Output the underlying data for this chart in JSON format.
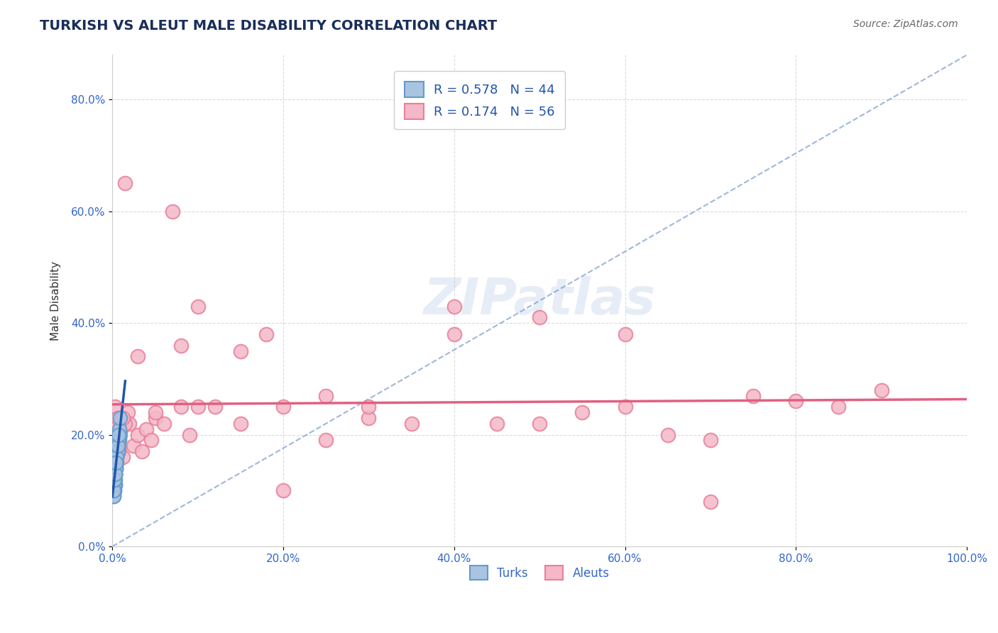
{
  "title": "TURKISH VS ALEUT MALE DISABILITY CORRELATION CHART",
  "source": "Source: ZipAtlas.com",
  "xlabel": "",
  "ylabel": "Male Disability",
  "xlim": [
    0.0,
    1.0
  ],
  "ylim": [
    0.0,
    0.88
  ],
  "xticks": [
    0.0,
    0.2,
    0.4,
    0.6,
    0.8,
    1.0
  ],
  "xticklabels": [
    "0.0%",
    "20.0%",
    "40.0%",
    "60.0%",
    "80.0%",
    "100.0%"
  ],
  "yticks": [
    0.0,
    0.2,
    0.4,
    0.6,
    0.8
  ],
  "yticklabels": [
    "0.0%",
    "20.0%",
    "40.0%",
    "60.0%",
    "80.0%"
  ],
  "turks_color": "#a8c4e0",
  "turks_edge_color": "#6699cc",
  "aleuts_color": "#f4b8c8",
  "aleuts_edge_color": "#e8809a",
  "turks_label": "Turks",
  "aleuts_label": "Aleuts",
  "turks_R": "0.578",
  "turks_N": "44",
  "aleuts_R": "0.174",
  "aleuts_N": "56",
  "turks_line_color": "#2255aa",
  "aleuts_line_color": "#e06080",
  "ref_line_color": "#7799cc",
  "title_color": "#1a2e5a",
  "tick_color": "#3366cc",
  "background_color": "#ffffff",
  "grid_color": "#cccccc",
  "watermark": "ZIPatlas",
  "turks_x": [
    0.001,
    0.002,
    0.001,
    0.003,
    0.002,
    0.001,
    0.004,
    0.002,
    0.003,
    0.001,
    0.005,
    0.003,
    0.002,
    0.001,
    0.004,
    0.003,
    0.002,
    0.001,
    0.006,
    0.003,
    0.007,
    0.004,
    0.002,
    0.005,
    0.008,
    0.003,
    0.006,
    0.004,
    0.002,
    0.001,
    0.009,
    0.005,
    0.003,
    0.007,
    0.004,
    0.006,
    0.002,
    0.003,
    0.005,
    0.004,
    0.008,
    0.006,
    0.007,
    0.009
  ],
  "turks_y": [
    0.12,
    0.1,
    0.14,
    0.11,
    0.13,
    0.09,
    0.15,
    0.1,
    0.12,
    0.11,
    0.16,
    0.13,
    0.12,
    0.1,
    0.14,
    0.11,
    0.15,
    0.09,
    0.17,
    0.13,
    0.18,
    0.14,
    0.12,
    0.16,
    0.19,
    0.13,
    0.17,
    0.15,
    0.11,
    0.1,
    0.2,
    0.15,
    0.13,
    0.19,
    0.14,
    0.17,
    0.12,
    0.13,
    0.16,
    0.15,
    0.21,
    0.18,
    0.2,
    0.23
  ],
  "aleuts_x": [
    0.001,
    0.002,
    0.003,
    0.004,
    0.005,
    0.006,
    0.007,
    0.008,
    0.01,
    0.012,
    0.015,
    0.018,
    0.02,
    0.025,
    0.03,
    0.035,
    0.04,
    0.045,
    0.05,
    0.06,
    0.07,
    0.08,
    0.09,
    0.1,
    0.12,
    0.15,
    0.18,
    0.2,
    0.25,
    0.3,
    0.35,
    0.4,
    0.45,
    0.5,
    0.55,
    0.6,
    0.65,
    0.7,
    0.75,
    0.8,
    0.85,
    0.9,
    0.15,
    0.08,
    0.03,
    0.015,
    0.2,
    0.4,
    0.6,
    0.012,
    0.25,
    0.1,
    0.7,
    0.05,
    0.3,
    0.5
  ],
  "aleuts_y": [
    0.22,
    0.18,
    0.25,
    0.2,
    0.15,
    0.23,
    0.19,
    0.17,
    0.21,
    0.16,
    0.65,
    0.24,
    0.22,
    0.18,
    0.2,
    0.17,
    0.21,
    0.19,
    0.23,
    0.22,
    0.6,
    0.25,
    0.2,
    0.43,
    0.25,
    0.22,
    0.38,
    0.25,
    0.19,
    0.23,
    0.22,
    0.43,
    0.22,
    0.41,
    0.24,
    0.38,
    0.2,
    0.19,
    0.27,
    0.26,
    0.25,
    0.28,
    0.35,
    0.36,
    0.34,
    0.22,
    0.1,
    0.38,
    0.25,
    0.23,
    0.27,
    0.25,
    0.08,
    0.24,
    0.25,
    0.22
  ]
}
